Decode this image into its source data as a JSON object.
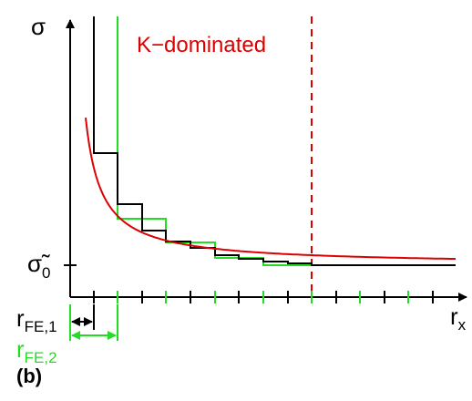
{
  "figure": {
    "panel_label": "(b)",
    "y_axis_symbol": "σ",
    "x_axis_symbol": "r",
    "x_axis_subscript": "x",
    "asymptote_symbol": "σ̃",
    "asymptote_subscript": "0",
    "region_label": "K−dominated",
    "mesh1_label": "r",
    "mesh1_subscript": "FE,1",
    "mesh2_label": "r",
    "mesh2_subscript": "FE,2"
  },
  "colors": {
    "analytic_curve": "#dd0000",
    "fine_mesh": "#000000",
    "coarse_mesh": "#22dd22",
    "k_dominated_boundary": "#dd0000",
    "axes": "#000000"
  }
}
